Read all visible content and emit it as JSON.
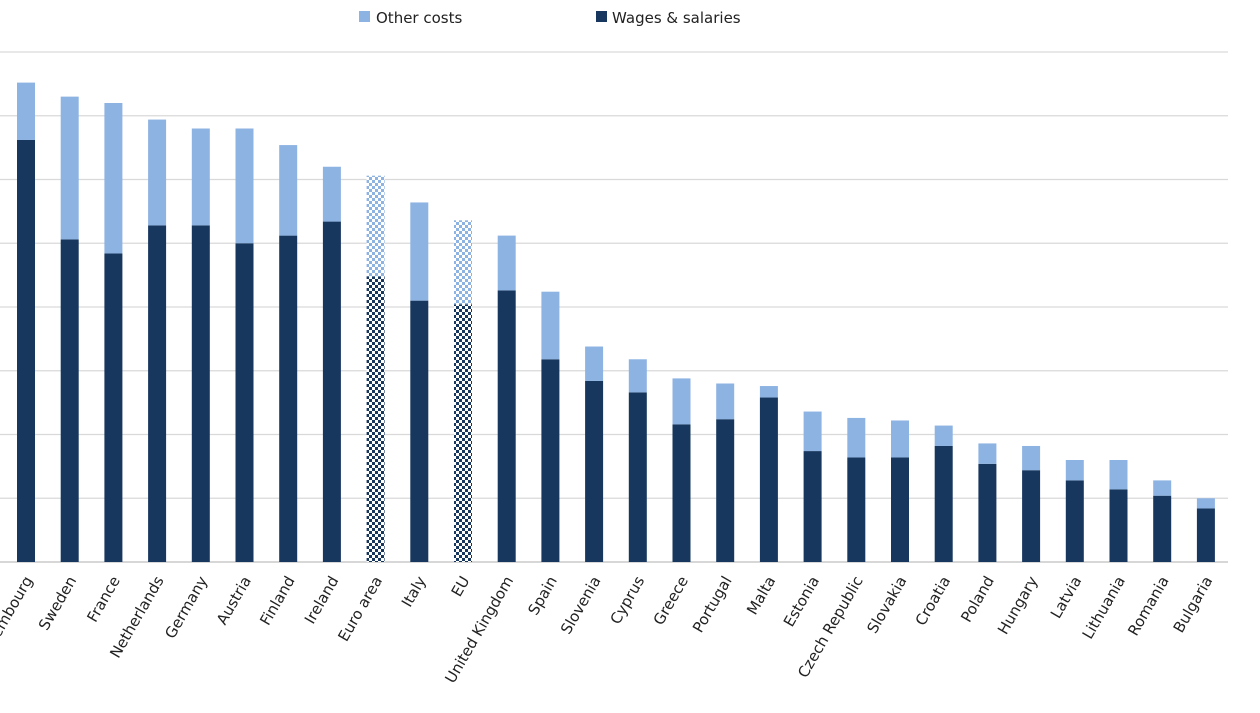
{
  "chart_data": {
    "type": "bar",
    "stacked": true,
    "title": "",
    "xlabel": "",
    "ylabel": "",
    "ylim": [
      0,
      40
    ],
    "grid": true,
    "legend_placement": "top",
    "categories": [
      "Luxembourg",
      "Sweden",
      "France",
      "Netherlands",
      "Germany",
      "Austria",
      "Finland",
      "Ireland",
      "Euro area",
      "Italy",
      "EU",
      "United Kingdom",
      "Spain",
      "Slovenia",
      "Cyprus",
      "Greece",
      "Portugal",
      "Malta",
      "Estonia",
      "Czech Republic",
      "Slovakia",
      "Croatia",
      "Poland",
      "Hungary",
      "Latvia",
      "Lithuania",
      "Romania",
      "Bulgaria"
    ],
    "patterned_categories": [
      "Euro area",
      "EU"
    ],
    "series": [
      {
        "name": "Wages & salaries",
        "color": "#17375e",
        "values": [
          33.1,
          25.3,
          24.2,
          26.4,
          26.4,
          25.0,
          25.6,
          26.7,
          22.4,
          20.5,
          20.2,
          21.3,
          15.9,
          14.2,
          13.3,
          10.8,
          11.2,
          12.9,
          8.7,
          8.2,
          8.2,
          9.1,
          7.7,
          7.2,
          6.4,
          5.7,
          5.2,
          4.2
        ]
      },
      {
        "name": "Other costs",
        "color": "#8db3e2",
        "values": [
          4.5,
          11.2,
          11.8,
          8.3,
          7.6,
          9.0,
          7.1,
          4.3,
          7.9,
          7.7,
          6.6,
          4.3,
          5.3,
          2.7,
          2.6,
          3.6,
          2.8,
          0.9,
          3.1,
          3.1,
          2.9,
          1.6,
          1.6,
          1.9,
          1.6,
          2.3,
          1.2,
          0.8
        ]
      }
    ],
    "legend": [
      "Other costs",
      "Wages & salaries"
    ]
  }
}
